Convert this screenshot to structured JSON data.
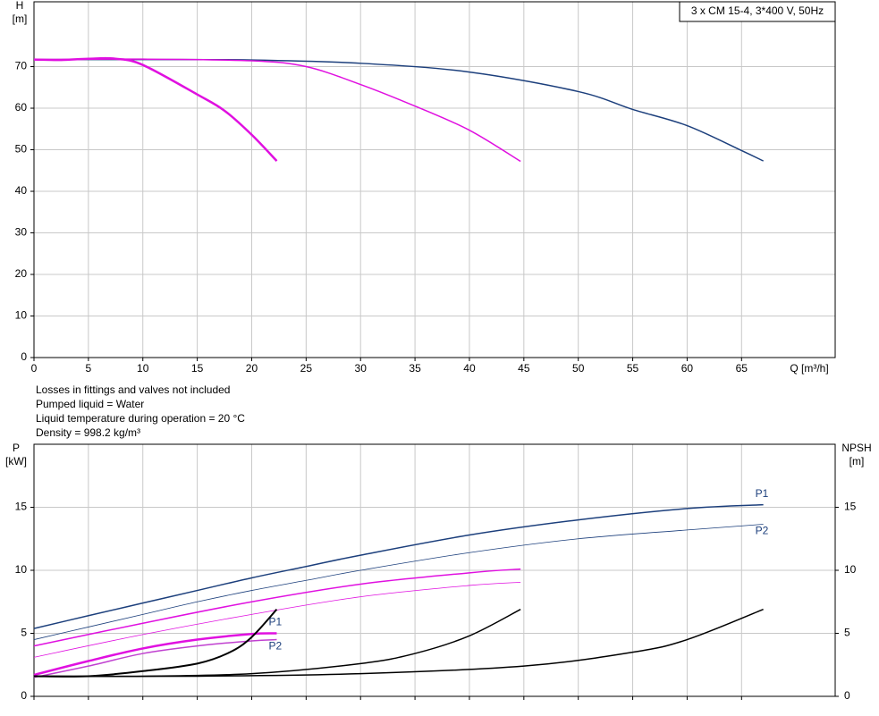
{
  "chart_data": [
    {
      "type": "line",
      "title": "3 x CM 15-4, 3*400 V, 50Hz",
      "y_label": [
        "H",
        "[m]"
      ],
      "x_label": "Q [m³/h]",
      "xlim": [
        0,
        73.6
      ],
      "xticks": [
        0,
        5,
        10,
        15,
        20,
        25,
        30,
        35,
        40,
        45,
        50,
        55,
        60,
        65
      ],
      "ylim": [
        0,
        85.6
      ],
      "yticks": [
        0,
        10,
        20,
        30,
        40,
        50,
        60,
        70
      ],
      "grid": true,
      "series": [
        {
          "color": "#1c3f7c",
          "linewidth": 1.5,
          "x": [
            0,
            10,
            20,
            30,
            40,
            50,
            55,
            60,
            65,
            67
          ],
          "values": [
            71.7,
            71.7,
            71.6,
            70.8,
            68.7,
            64,
            59.7,
            55.8,
            49.8,
            47.3
          ]
        },
        {
          "color": "#e010e0",
          "linewidth": 1.5,
          "x": [
            0,
            10,
            20,
            25,
            30,
            35,
            40,
            44.7
          ],
          "values": [
            71.7,
            71.8,
            71.4,
            70,
            65.7,
            60.5,
            54.7,
            47.2
          ]
        },
        {
          "color": "#e010e0",
          "linewidth": 2.5,
          "x": [
            0,
            2.5,
            5,
            7.5,
            10,
            15,
            17.5,
            20,
            22.3
          ],
          "values": [
            71.7,
            71.6,
            71.9,
            71.9,
            70.4,
            63.3,
            59.4,
            53.6,
            47.3
          ]
        }
      ]
    },
    {
      "type": "line",
      "y_label": [
        "P",
        "[kW]"
      ],
      "y2_label": [
        "NPSH",
        "[m]"
      ],
      "xlim": [
        0,
        73.6
      ],
      "ylim": [
        0,
        20
      ],
      "yticks": [
        0,
        5,
        10,
        15
      ],
      "y2lim": [
        0,
        20
      ],
      "y2ticks": [
        0,
        5,
        10,
        15
      ],
      "grid": true,
      "series": [
        {
          "name": "P1",
          "color": "#1c3f7c",
          "linewidth": 1.5,
          "x": [
            0,
            5,
            10,
            15,
            20,
            25,
            30,
            40,
            50,
            60,
            67
          ],
          "values": [
            5.38,
            6.4,
            7.4,
            8.4,
            9.4,
            10.3,
            11.2,
            12.8,
            14,
            14.9,
            15.2
          ]
        },
        {
          "name": "P2",
          "color": "#1c3f7c",
          "linewidth": 0.8,
          "x": [
            0,
            5,
            10,
            15,
            20,
            25,
            30,
            40,
            50,
            60,
            67
          ],
          "values": [
            4.5,
            5.5,
            6.5,
            7.5,
            8.4,
            9.2,
            10,
            11.4,
            12.5,
            13.2,
            13.65
          ]
        },
        {
          "color": "#e010e0",
          "linewidth": 1.5,
          "x": [
            0,
            10,
            20,
            30,
            40,
            44.7
          ],
          "values": [
            4,
            5.8,
            7.5,
            8.9,
            9.8,
            10.1
          ]
        },
        {
          "color": "#e010e0",
          "linewidth": 0.8,
          "x": [
            0,
            10,
            20,
            30,
            40,
            44.7
          ],
          "values": [
            3.1,
            4.9,
            6.5,
            7.9,
            8.8,
            9.05
          ]
        },
        {
          "name": "P1",
          "color": "#e010e0",
          "linewidth": 2.5,
          "x": [
            0,
            5,
            10,
            15,
            20,
            22.3
          ],
          "values": [
            1.7,
            2.8,
            3.8,
            4.5,
            4.95,
            5
          ]
        },
        {
          "name": "P2",
          "color": "#c040d0",
          "linewidth": 1.5,
          "x": [
            0,
            5,
            10,
            15,
            20,
            22.3
          ],
          "values": [
            1.5,
            2.4,
            3.4,
            4,
            4.4,
            4.5
          ]
        },
        {
          "color": "#000000",
          "linewidth": 2,
          "axis": "y2",
          "x": [
            0,
            5,
            10,
            15,
            18,
            20,
            22.3
          ],
          "values": [
            1.6,
            1.6,
            2,
            2.6,
            3.5,
            4.7,
            6.9
          ]
        },
        {
          "color": "#000000",
          "linewidth": 1.5,
          "axis": "y2",
          "x": [
            0,
            10,
            20,
            30,
            35,
            40,
            44.7
          ],
          "values": [
            1.6,
            1.6,
            1.8,
            2.6,
            3.4,
            4.8,
            6.9
          ]
        },
        {
          "color": "#000000",
          "linewidth": 1.5,
          "axis": "y2",
          "x": [
            0,
            15,
            30,
            45,
            55,
            60,
            67
          ],
          "values": [
            1.6,
            1.6,
            1.8,
            2.4,
            3.5,
            4.5,
            6.9
          ]
        }
      ]
    }
  ],
  "notes": [
    "Losses in fittings and valves not included",
    "Pumped liquid = Water",
    "Liquid temperature during operation = 20 °C",
    "Density = 998.2 kg/m³"
  ]
}
